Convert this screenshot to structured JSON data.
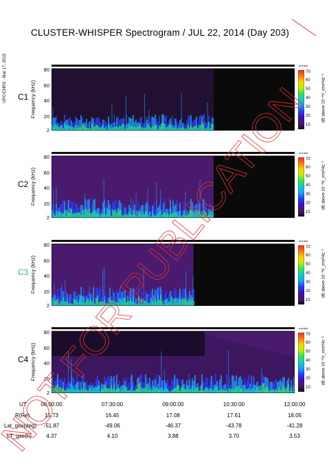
{
  "title": "CLUSTER-WHISPER Spectrogram / JUL 22, 2014 (Day 203)",
  "side_note": "UPC/CNRS - Mar 17, 2015",
  "watermark": "NOT FOR PUBLICATION",
  "colors": {
    "background": "#ffffff",
    "dark": "#0a0a0a",
    "plasma_base": "#4a1a6e",
    "c3_label": "#22c55e",
    "watermark": "#e3342f"
  },
  "colorbar": {
    "title": "monitor",
    "label": "dB above 10⁻⁸V_rms²Hz⁻¹",
    "ticks": [
      "70",
      "60",
      "50",
      "40",
      "30",
      "20",
      "10"
    ],
    "range": [
      5,
      72
    ]
  },
  "chart_data": {
    "type": "heatmap",
    "x_axis": {
      "label": "UT",
      "ticks": [
        "06:00:00",
        "07:30:00",
        "09:00:00",
        "10:30:00",
        "12:00:00"
      ]
    },
    "y_axis": {
      "label": "Frequency (kHz)",
      "ticks": [
        "80",
        "60",
        "40",
        "20",
        "2"
      ],
      "range_khz": [
        2,
        82
      ]
    },
    "panels": [
      {
        "name": "C1",
        "ylabel": "Frequency (kHz)",
        "data_end_ut": "10:00:00"
      },
      {
        "name": "C2",
        "ylabel": "Frequency (kHz)",
        "data_end_ut": "10:00:00"
      },
      {
        "name": "C3",
        "ylabel": "Frequency (kHz)",
        "data_end_ut": "09:30:00"
      },
      {
        "name": "C4",
        "ylabel": "Frequency (kHz)",
        "data_end_ut": "12:00:00"
      }
    ],
    "orbit_table": {
      "rows": [
        {
          "label": "UT",
          "values": [
            "06:00:00",
            "07:30:00",
            "09:00:00",
            "10:30:00",
            "12:00:00"
          ]
        },
        {
          "label": "R(Re)",
          "values": [
            "15.73",
            "16.45",
            "17.08",
            "17.61",
            "18.05"
          ]
        },
        {
          "label": "Lat_gse(deg)",
          "values": [
            "-51.87",
            "-49.06",
            "-46.37",
            "-43.78",
            "-41.28"
          ]
        },
        {
          "label": "LT_gse(h)",
          "values": [
            "4.37",
            "4.10",
            "3.88",
            "3.70",
            "3.53"
          ]
        }
      ]
    }
  }
}
